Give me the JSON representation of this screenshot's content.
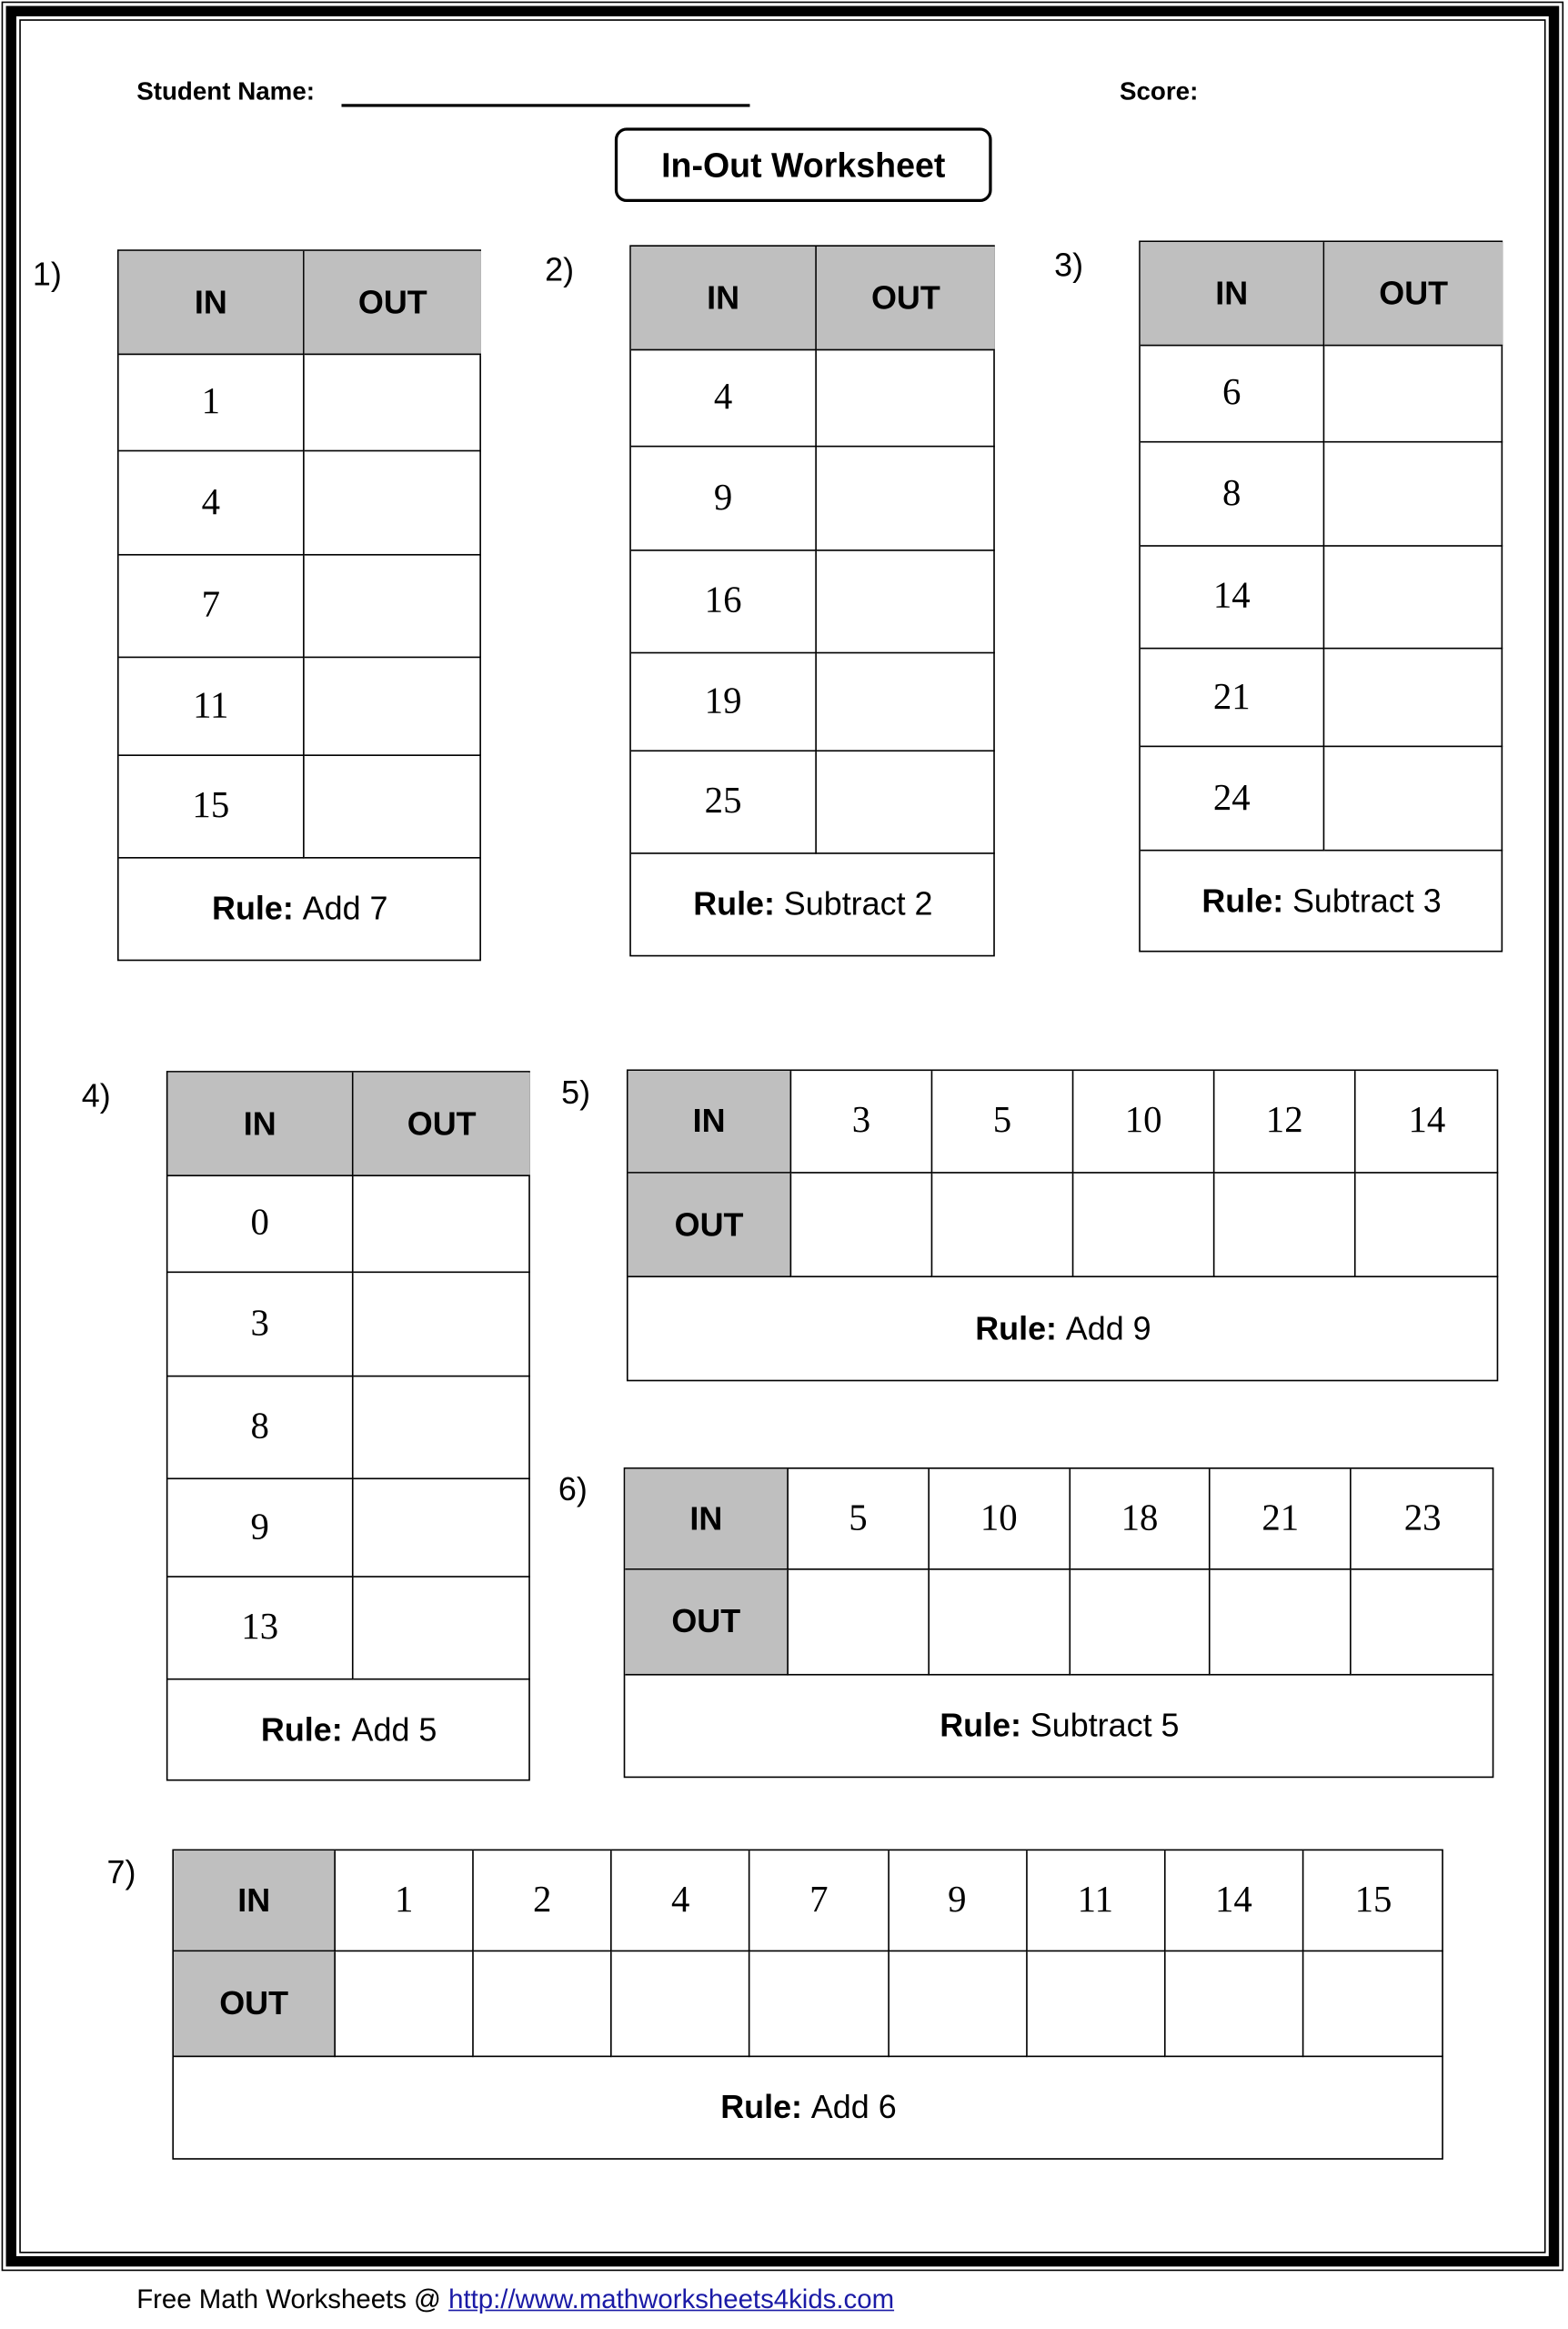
{
  "header": {
    "student_name_label": "Student Name:",
    "score_label": "Score:",
    "title": "In-Out Worksheet"
  },
  "labels": {
    "in": "IN",
    "out": "OUT",
    "rule": "Rule:"
  },
  "colors": {
    "header_fill": "#bfbfbf",
    "link": "#1a1aa6"
  },
  "problems": [
    {
      "number": "1)",
      "layout": "vertical",
      "inputs": [
        "1",
        "4",
        "7",
        "11",
        "15"
      ],
      "rule": "Add 7"
    },
    {
      "number": "2)",
      "layout": "vertical",
      "inputs": [
        "4",
        "9",
        "16",
        "19",
        "25"
      ],
      "rule": "Subtract 2"
    },
    {
      "number": "3)",
      "layout": "vertical",
      "inputs": [
        "6",
        "8",
        "14",
        "21",
        "24"
      ],
      "rule": "Subtract 3"
    },
    {
      "number": "4)",
      "layout": "vertical",
      "inputs": [
        "0",
        "3",
        "8",
        "9",
        "13"
      ],
      "rule": "Add 5"
    },
    {
      "number": "5)",
      "layout": "horizontal",
      "inputs": [
        "3",
        "5",
        "10",
        "12",
        "14"
      ],
      "rule": "Add 9"
    },
    {
      "number": "6)",
      "layout": "horizontal",
      "inputs": [
        "5",
        "10",
        "18",
        "21",
        "23"
      ],
      "rule": "Subtract 5"
    },
    {
      "number": "7)",
      "layout": "horizontal",
      "inputs": [
        "1",
        "2",
        "4",
        "7",
        "9",
        "11",
        "14",
        "15"
      ],
      "rule": "Add 6"
    }
  ],
  "footer": {
    "text": "Free Math Worksheets @",
    "link": "http://www.mathworksheets4kids.com"
  }
}
